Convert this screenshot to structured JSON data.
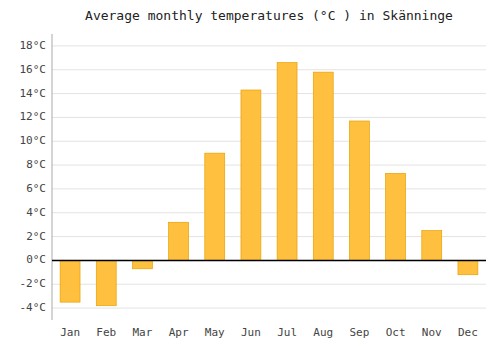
{
  "chart_data": {
    "type": "bar",
    "title": "Average monthly temperatures (°C ) in Skänninge",
    "categories": [
      "Jan",
      "Feb",
      "Mar",
      "Apr",
      "May",
      "Jun",
      "Jul",
      "Aug",
      "Sep",
      "Oct",
      "Nov",
      "Dec"
    ],
    "values": [
      -3.5,
      -3.8,
      -0.7,
      3.2,
      9.0,
      14.3,
      16.6,
      15.8,
      11.7,
      7.3,
      2.5,
      -1.2
    ],
    "color": "#FFC040",
    "ylim": [
      -5,
      19
    ],
    "yticks": [
      {
        "value": -4,
        "label": "-4°C"
      },
      {
        "value": -2,
        "label": "-2°C"
      },
      {
        "value": 0,
        "label": "0°C"
      },
      {
        "value": 2,
        "label": "2°C"
      },
      {
        "value": 4,
        "label": "4°C"
      },
      {
        "value": 6,
        "label": "6°C"
      },
      {
        "value": 8,
        "label": "8°C"
      },
      {
        "value": 10,
        "label": "10°C"
      },
      {
        "value": 12,
        "label": "12°C"
      },
      {
        "value": 14,
        "label": "14°C"
      },
      {
        "value": 16,
        "label": "16°C"
      },
      {
        "value": 18,
        "label": "18°C"
      }
    ],
    "grid": true
  }
}
